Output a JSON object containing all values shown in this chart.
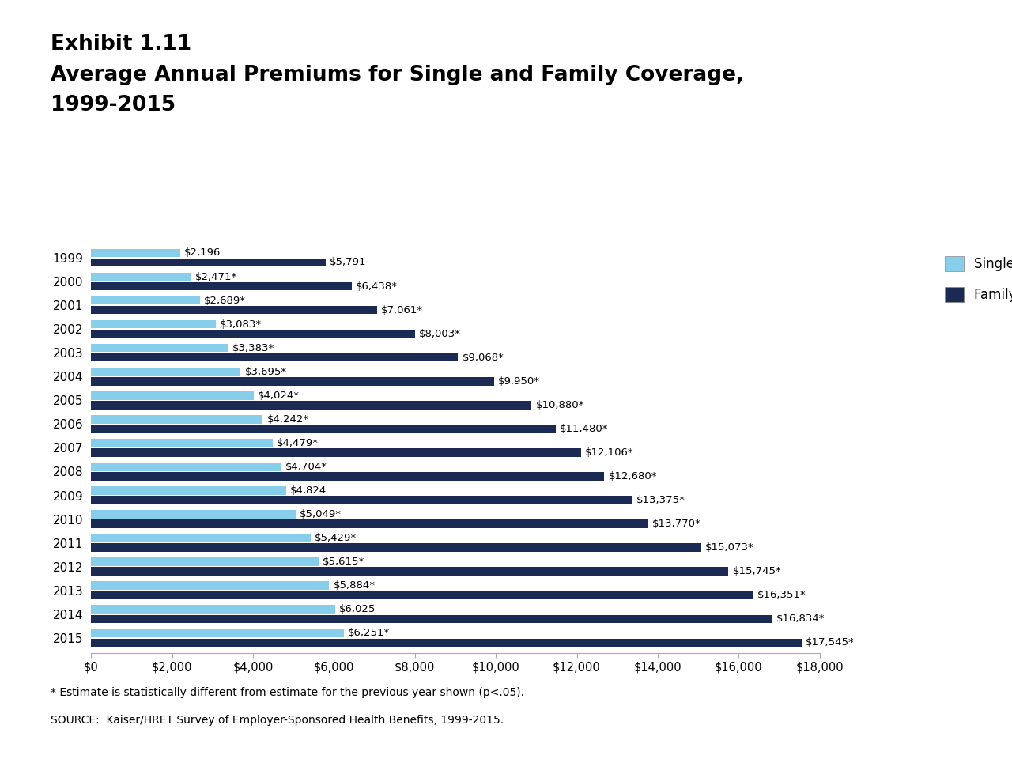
{
  "title_line1": "Exhibit 1.11",
  "title_line2": "Average Annual Premiums for Single and Family Coverage,",
  "title_line3": "1999-2015",
  "years": [
    1999,
    2000,
    2001,
    2002,
    2003,
    2004,
    2005,
    2006,
    2007,
    2008,
    2009,
    2010,
    2011,
    2012,
    2013,
    2014,
    2015
  ],
  "single": [
    2196,
    2471,
    2689,
    3083,
    3383,
    3695,
    4024,
    4242,
    4479,
    4704,
    4824,
    5049,
    5429,
    5615,
    5884,
    6025,
    6251
  ],
  "family": [
    5791,
    6438,
    7061,
    8003,
    9068,
    9950,
    10880,
    11480,
    12106,
    12680,
    13375,
    13770,
    15073,
    15745,
    16351,
    16834,
    17545
  ],
  "single_labels": [
    "$2,196",
    "$2,471*",
    "$2,689*",
    "$3,083*",
    "$3,383*",
    "$3,695*",
    "$4,024*",
    "$4,242*",
    "$4,479*",
    "$4,704*",
    "$4,824",
    "$5,049*",
    "$5,429*",
    "$5,615*",
    "$5,884*",
    "$6,025",
    "$6,251*"
  ],
  "family_labels": [
    "$5,791",
    "$6,438*",
    "$7,061*",
    "$8,003*",
    "$9,068*",
    "$9,950*",
    "$10,880*",
    "$11,480*",
    "$12,106*",
    "$12,680*",
    "$13,375*",
    "$13,770*",
    "$15,073*",
    "$15,745*",
    "$16,351*",
    "$16,834*",
    "$17,545*"
  ],
  "single_color": "#87CEEB",
  "family_color": "#1b2a52",
  "background_color": "#ffffff",
  "xlim": [
    0,
    18000
  ],
  "xticks": [
    0,
    2000,
    4000,
    6000,
    8000,
    10000,
    12000,
    14000,
    16000,
    18000
  ],
  "xtick_labels": [
    "$0",
    "$2,000",
    "$4,000",
    "$6,000",
    "$8,000",
    "$10,000",
    "$12,000",
    "$14,000",
    "$16,000",
    "$18,000"
  ],
  "legend_single": "Single Coverage",
  "legend_family": "Family Coverage",
  "footnote1": "* Estimate is statistically different from estimate for the previous year shown (p<.05).",
  "footnote2": "SOURCE:  Kaiser/HRET Survey of Employer-Sponsored Health Benefits, 1999-2015."
}
